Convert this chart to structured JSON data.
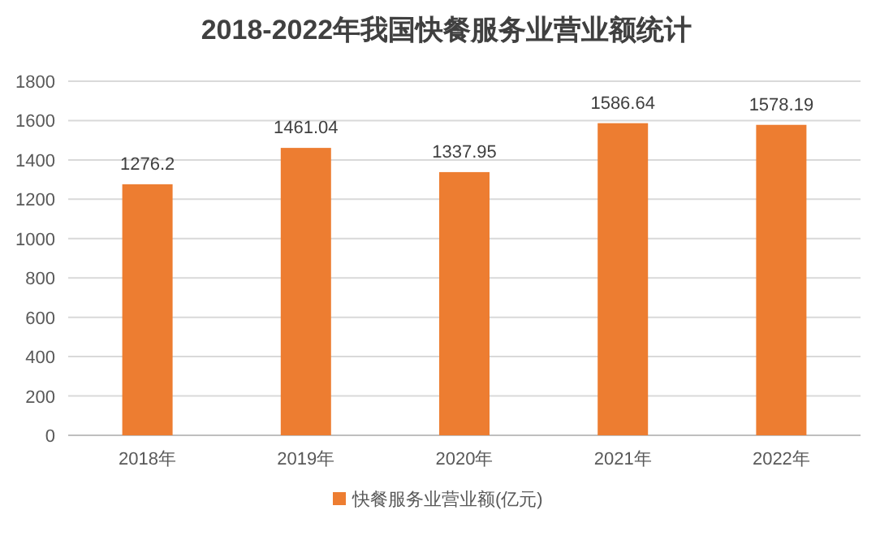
{
  "chart_data": {
    "type": "bar",
    "title": "2018-2022年我国快餐服务业营业额统计",
    "categories": [
      "2018年",
      "2019年",
      "2020年",
      "2021年",
      "2022年"
    ],
    "series": [
      {
        "name": "快餐服务业营业额(亿元)",
        "color": "#ed7d31",
        "values": [
          1276.2,
          1461.04,
          1337.95,
          1586.64,
          1578.19
        ]
      }
    ],
    "ylim": [
      0,
      1800
    ],
    "yticks": [
      0,
      200,
      400,
      600,
      800,
      1000,
      1200,
      1400,
      1600,
      1800
    ],
    "grid": "y",
    "legend": "bottom",
    "data_labels": true
  }
}
